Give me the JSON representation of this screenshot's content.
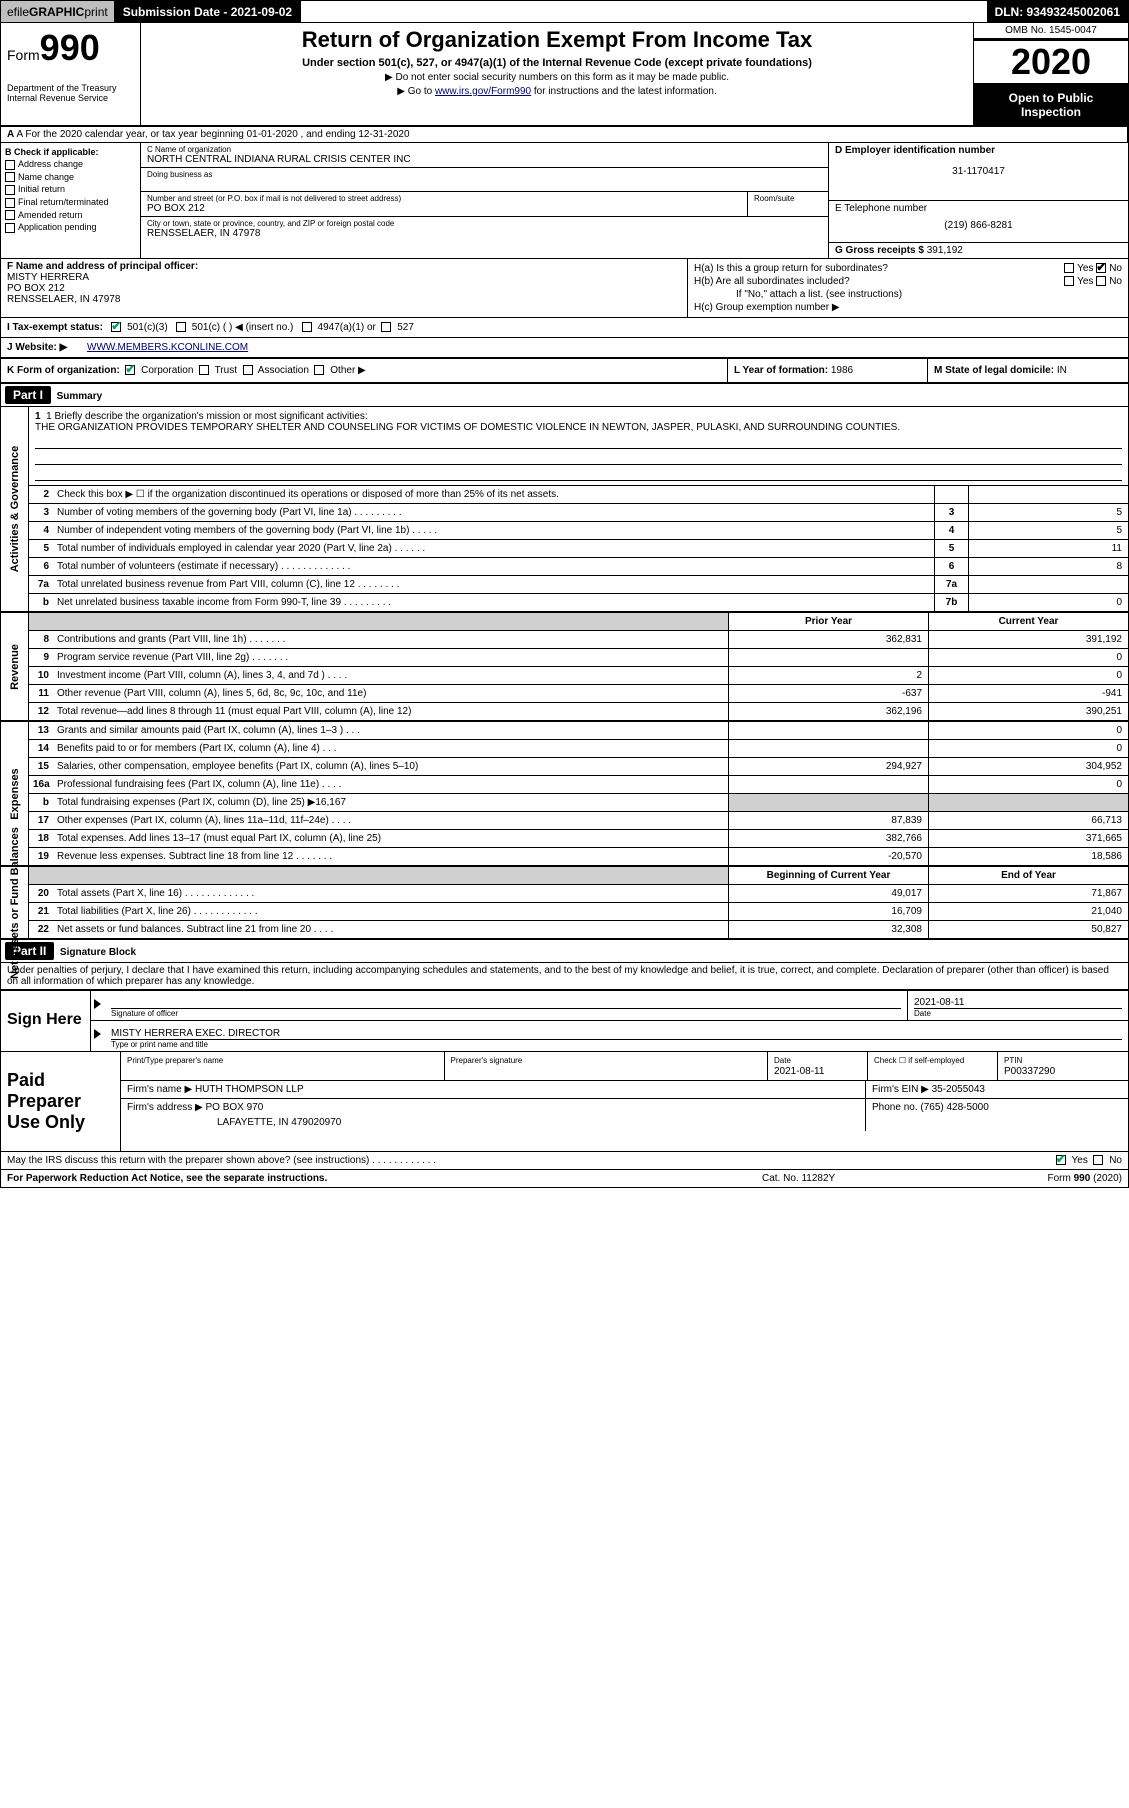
{
  "topbar": {
    "efile_prefix": "efile ",
    "efile_bold": "GRAPHIC ",
    "efile_suffix": "print",
    "submission": "Submission Date - 2021-09-02",
    "dln": "DLN: 93493245002061"
  },
  "header": {
    "form_label": "Form",
    "form_number": "990",
    "dept": "Department of the Treasury\nInternal Revenue Service",
    "title": "Return of Organization Exempt From Income Tax",
    "sub1": "Under section 501(c), 527, or 4947(a)(1) of the Internal Revenue Code (except private foundations)",
    "sub2": "▶ Do not enter social security numbers on this form as it may be made public.",
    "sub3_pre": "▶ Go to ",
    "sub3_link": "www.irs.gov/Form990",
    "sub3_post": " for instructions and the latest information.",
    "omb": "OMB No. 1545-0047",
    "year": "2020",
    "inspect": "Open to Public Inspection"
  },
  "rowA": "A For the 2020 calendar year, or tax year beginning 01-01-2020   , and ending 12-31-2020",
  "B": {
    "label": "B Check if applicable:",
    "items": [
      "Address change",
      "Name change",
      "Initial return",
      "Final return/terminated",
      "Amended return",
      "Application pending"
    ]
  },
  "C": {
    "name_label": "C Name of organization",
    "name": "NORTH CENTRAL INDIANA RURAL CRISIS CENTER INC",
    "dba_label": "Doing business as",
    "street_label": "Number and street (or P.O. box if mail is not delivered to street address)",
    "street": "PO BOX 212",
    "room_label": "Room/suite",
    "city_label": "City or town, state or province, country, and ZIP or foreign postal code",
    "city": "RENSSELAER, IN  47978"
  },
  "D": {
    "label": "D Employer identification number",
    "val": "31-1170417"
  },
  "E": {
    "label": "E Telephone number",
    "val": "(219) 866-8281"
  },
  "G": {
    "label": "G Gross receipts $ ",
    "val": "391,192"
  },
  "F": {
    "label": "F  Name and address of principal officer:",
    "name": "MISTY HERRERA",
    "addr1": "PO BOX 212",
    "addr2": "RENSSELAER, IN  47978"
  },
  "H": {
    "a": "H(a)  Is this a group return for subordinates?",
    "a_yes": "Yes",
    "a_no": "No",
    "b": "H(b)  Are all subordinates included?",
    "b_yes": "Yes",
    "b_no": "No",
    "note": "If \"No,\" attach a list. (see instructions)",
    "c": "H(c)  Group exemption number ▶"
  },
  "I": {
    "label": "I   Tax-exempt status:",
    "opts": [
      "501(c)(3)",
      "501(c) (  ) ◀ (insert no.)",
      "4947(a)(1) or",
      "527"
    ]
  },
  "J": {
    "label": "J   Website: ▶",
    "val": "WWW.MEMBERS.KCONLINE.COM"
  },
  "K": {
    "label": "K Form of organization:",
    "opts": [
      "Corporation",
      "Trust",
      "Association",
      "Other ▶"
    ]
  },
  "L": {
    "label": "L Year of formation: ",
    "val": "1986"
  },
  "M": {
    "label": "M State of legal domicile: ",
    "val": "IN"
  },
  "partI": {
    "hdr": "Part I",
    "title": "Summary"
  },
  "mission": {
    "label": "1  Briefly describe the organization's mission or most significant activities:",
    "text": "THE ORGANIZATION PROVIDES TEMPORARY SHELTER AND COUNSELING FOR VICTIMS OF DOMESTIC VIOLENCE IN NEWTON, JASPER, PULASKI, AND SURROUNDING COUNTIES."
  },
  "gov_rows": [
    {
      "n": "2",
      "lbl": "Check this box ▶ ☐  if the organization discontinued its operations or disposed of more than 25% of its net assets.",
      "box": "",
      "val": ""
    },
    {
      "n": "3",
      "lbl": "Number of voting members of the governing body (Part VI, line 1a)  .    .    .    .    .    .    .    .    .",
      "box": "3",
      "val": "5"
    },
    {
      "n": "4",
      "lbl": "Number of independent voting members of the governing body (Part VI, line 1b)  .    .    .    .    .",
      "box": "4",
      "val": "5"
    },
    {
      "n": "5",
      "lbl": "Total number of individuals employed in calendar year 2020 (Part V, line 2a)  .    .    .    .    .    .",
      "box": "5",
      "val": "11"
    },
    {
      "n": "6",
      "lbl": "Total number of volunteers (estimate if necessary)    .    .    .    .    .    .    .    .    .    .    .    .    .",
      "box": "6",
      "val": "8"
    },
    {
      "n": "7a",
      "lbl": "Total unrelated business revenue from Part VIII, column (C), line 12  .    .    .    .    .    .    .    .",
      "box": "7a",
      "val": ""
    },
    {
      "n": "b",
      "lbl": "Net unrelated business taxable income from Form 990-T, line 39   .    .    .    .    .    .    .    .    .",
      "box": "7b",
      "val": "0"
    }
  ],
  "colhdr": {
    "prior": "Prior Year",
    "current": "Current Year"
  },
  "rev_rows": [
    {
      "n": "8",
      "lbl": "Contributions and grants (Part VIII, line 1h)   .   .   .   .   .   .   .",
      "p": "362,831",
      "c": "391,192"
    },
    {
      "n": "9",
      "lbl": "Program service revenue (Part VIII, line 2g)   .   .   .   .   .   .   .",
      "p": "",
      "c": "0"
    },
    {
      "n": "10",
      "lbl": "Investment income (Part VIII, column (A), lines 3, 4, and 7d )   .   .   .   .",
      "p": "2",
      "c": "0"
    },
    {
      "n": "11",
      "lbl": "Other revenue (Part VIII, column (A), lines 5, 6d, 8c, 9c, 10c, and 11e)",
      "p": "-637",
      "c": "-941"
    },
    {
      "n": "12",
      "lbl": "Total revenue—add lines 8 through 11 (must equal Part VIII, column (A), line 12)",
      "p": "362,196",
      "c": "390,251"
    }
  ],
  "exp_rows": [
    {
      "n": "13",
      "lbl": "Grants and similar amounts paid (Part IX, column (A), lines 1–3 )  .   .   .",
      "p": "",
      "c": "0"
    },
    {
      "n": "14",
      "lbl": "Benefits paid to or for members (Part IX, column (A), line 4)  .   .   .",
      "p": "",
      "c": "0"
    },
    {
      "n": "15",
      "lbl": "Salaries, other compensation, employee benefits (Part IX, column (A), lines 5–10)",
      "p": "294,927",
      "c": "304,952"
    },
    {
      "n": "16a",
      "lbl": "Professional fundraising fees (Part IX, column (A), line 11e)  .   .   .   .",
      "p": "",
      "c": "0"
    },
    {
      "n": "b",
      "lbl": "Total fundraising expenses (Part IX, column (D), line 25) ▶16,167",
      "p": "GREY",
      "c": "GREY"
    },
    {
      "n": "17",
      "lbl": "Other expenses (Part IX, column (A), lines 11a–11d, 11f–24e)   .   .   .   .",
      "p": "87,839",
      "c": "66,713"
    },
    {
      "n": "18",
      "lbl": "Total expenses. Add lines 13–17 (must equal Part IX, column (A), line 25)",
      "p": "382,766",
      "c": "371,665"
    },
    {
      "n": "19",
      "lbl": "Revenue less expenses. Subtract line 18 from line 12  .   .   .   .   .   .   .",
      "p": "-20,570",
      "c": "18,586"
    }
  ],
  "na_hdr": {
    "beg": "Beginning of Current Year",
    "end": "End of Year"
  },
  "na_rows": [
    {
      "n": "20",
      "lbl": "Total assets (Part X, line 16)  .   .   .   .   .   .   .   .   .   .   .   .   .",
      "p": "49,017",
      "c": "71,867"
    },
    {
      "n": "21",
      "lbl": "Total liabilities (Part X, line 26)  .   .   .   .   .   .   .   .   .   .   .   .",
      "p": "16,709",
      "c": "21,040"
    },
    {
      "n": "22",
      "lbl": "Net assets or fund balances. Subtract line 21 from line 20  .   .   .   .",
      "p": "32,308",
      "c": "50,827"
    }
  ],
  "vlabels": {
    "gov": "Activities & Governance",
    "rev": "Revenue",
    "exp": "Expenses",
    "na": "Net Assets or Fund Balances"
  },
  "partII": {
    "hdr": "Part II",
    "title": "Signature Block"
  },
  "sig_decl": "Under penalties of perjury, I declare that I have examined this return, including accompanying schedules and statements, and to the best of my knowledge and belief, it is true, correct, and complete. Declaration of preparer (other than officer) is based on all information of which preparer has any knowledge.",
  "sign": {
    "label": "Sign Here",
    "sig_officer": "Signature of officer",
    "date_label": "Date",
    "date": "2021-08-11",
    "name": "MISTY HERRERA  EXEC. DIRECTOR",
    "name_label": "Type or print name and title"
  },
  "prep": {
    "label": "Paid Preparer Use Only",
    "r1": {
      "c1": "Print/Type preparer's name",
      "c2": "Preparer's signature",
      "c3": "Date",
      "c3v": "2021-08-11",
      "c4": "Check ☐  if self-employed",
      "c5": "PTIN",
      "c5v": "P00337290"
    },
    "r2": {
      "c1": "Firm's name     ▶ HUTH THOMPSON LLP",
      "c2": "Firm's EIN ▶ 35-2055043"
    },
    "r3": {
      "c1": "Firm's address ▶ PO BOX 970",
      "c1b": "LAFAYETTE, IN  479020970",
      "c2": "Phone no. (765) 428-5000"
    }
  },
  "irs_q": "May the IRS discuss this return with the preparer shown above? (see instructions)   .    .    .    .    .    .    .    .    .    .    .    .",
  "irs_yes": "Yes",
  "irs_no": "No",
  "footer": {
    "l": "For Paperwork Reduction Act Notice, see the separate instructions.",
    "m": "Cat. No. 11282Y",
    "r": "Form 990 (2020)"
  }
}
